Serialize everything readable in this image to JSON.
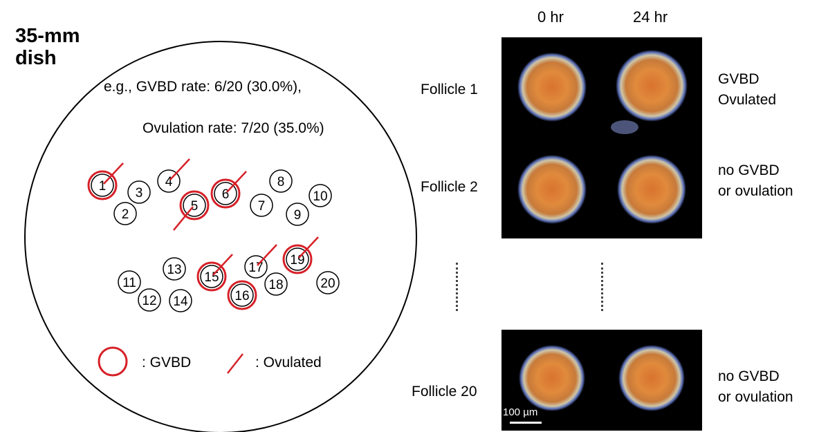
{
  "dish": {
    "title_line1": "35-mm",
    "title_line2": "dish",
    "gvbd_rate": "e.g., GVBD rate: 6/20 (30.0%),",
    "ovulation_rate": "Ovulation rate: 7/20 (35.0%)",
    "follicles": [
      {
        "label": "1",
        "gvbd": true,
        "ovulated": true
      },
      {
        "label": "2",
        "gvbd": false,
        "ovulated": false
      },
      {
        "label": "3",
        "gvbd": false,
        "ovulated": false
      },
      {
        "label": "4",
        "gvbd": false,
        "ovulated": true
      },
      {
        "label": "5",
        "gvbd": true,
        "ovulated": true
      },
      {
        "label": "6",
        "gvbd": true,
        "ovulated": true
      },
      {
        "label": "7",
        "gvbd": false,
        "ovulated": false
      },
      {
        "label": "8",
        "gvbd": false,
        "ovulated": false
      },
      {
        "label": "9",
        "gvbd": false,
        "ovulated": false
      },
      {
        "label": "10",
        "gvbd": false,
        "ovulated": false
      },
      {
        "label": "11",
        "gvbd": false,
        "ovulated": false
      },
      {
        "label": "12",
        "gvbd": false,
        "ovulated": false
      },
      {
        "label": "13",
        "gvbd": false,
        "ovulated": false
      },
      {
        "label": "14",
        "gvbd": false,
        "ovulated": false
      },
      {
        "label": "15",
        "gvbd": true,
        "ovulated": true
      },
      {
        "label": "16",
        "gvbd": true,
        "ovulated": false
      },
      {
        "label": "17",
        "gvbd": false,
        "ovulated": true
      },
      {
        "label": "18",
        "gvbd": false,
        "ovulated": false
      },
      {
        "label": "19",
        "gvbd": true,
        "ovulated": true
      },
      {
        "label": "20",
        "gvbd": false,
        "ovulated": false
      }
    ],
    "legend": {
      "gvbd_label": ": GVBD",
      "ovulated_label": ": Ovulated"
    }
  },
  "timepoints": {
    "t0": "0 hr",
    "t24": "24 hr"
  },
  "rows": [
    {
      "label": "Follicle 1",
      "result_line1": "GVBD",
      "result_line2": "Ovulated"
    },
    {
      "label": "Follicle 2",
      "result_line1": "no GVBD",
      "result_line2": "or ovulation"
    },
    {
      "label": "Follicle 20",
      "result_line1": "no GVBD",
      "result_line2": "or ovulation"
    }
  ],
  "scale_bar": "100 µm",
  "colors": {
    "mark_red": "#d62027",
    "panel_bg": "#000000"
  }
}
